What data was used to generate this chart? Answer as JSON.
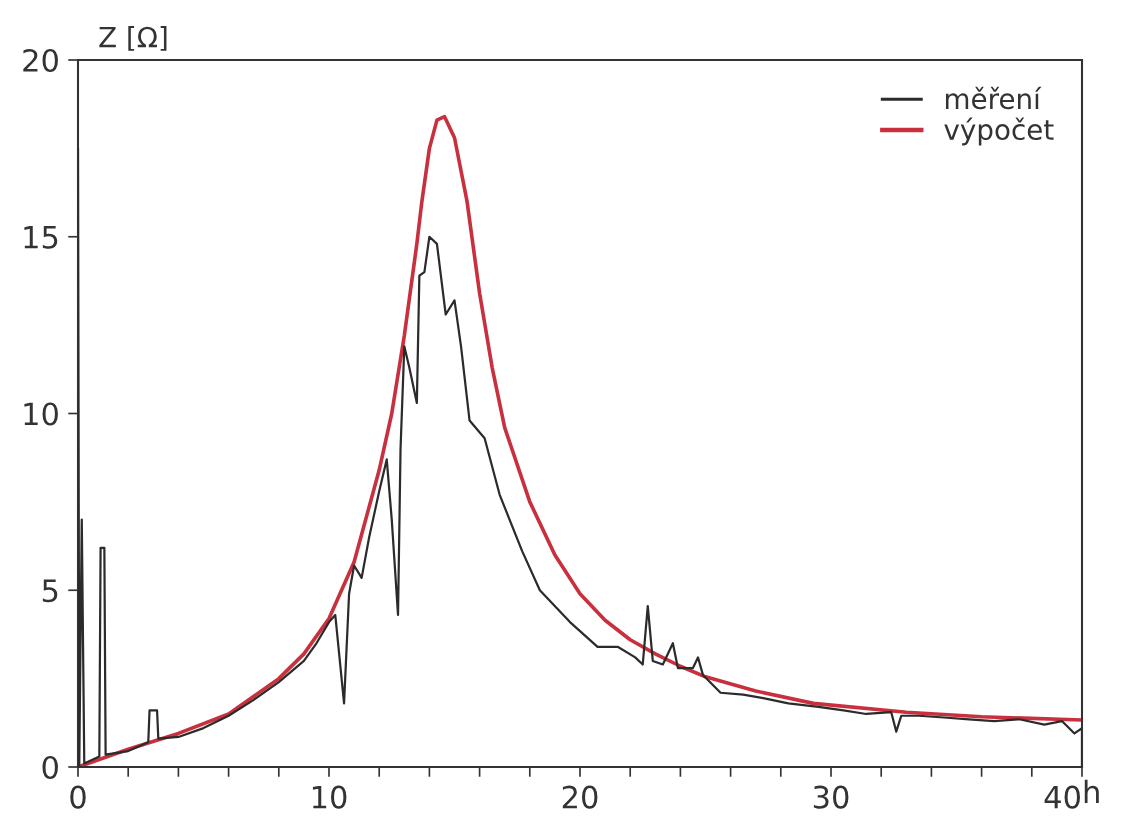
{
  "chart_data": {
    "type": "line",
    "ylabel": "Z [Ω]",
    "xlabel": "h",
    "xlim": [
      0,
      40
    ],
    "ylim": [
      0,
      20
    ],
    "xticks": [
      0,
      {
        "value": 2,
        "label": null
      },
      {
        "value": 4,
        "label": null
      },
      {
        "value": 6,
        "label": null
      },
      {
        "value": 8,
        "label": null
      },
      10,
      {
        "value": 12,
        "label": null
      },
      {
        "value": 14,
        "label": null
      },
      {
        "value": 16,
        "label": null
      },
      {
        "value": 18,
        "label": null
      },
      20,
      {
        "value": 22,
        "label": null
      },
      {
        "value": 24,
        "label": null
      },
      {
        "value": 26,
        "label": null
      },
      {
        "value": 28,
        "label": null
      },
      30,
      {
        "value": 32,
        "label": null
      },
      {
        "value": 34,
        "label": null
      },
      {
        "value": 36,
        "label": null
      },
      {
        "value": 38,
        "label": null
      },
      40
    ],
    "yticks": [
      0,
      5,
      10,
      15,
      20
    ],
    "grid": false,
    "legend": "top right",
    "line_style": "solid",
    "marker": "none",
    "series": [
      {
        "name": "měření",
        "color": "#2b2b2b",
        "x": [
          0,
          0,
          0.05,
          0.15,
          0.25,
          0.85,
          0.9,
          1.05,
          1.1,
          2,
          2.8,
          2.85,
          3.15,
          3.2,
          4,
          5,
          6,
          7,
          8,
          9,
          9.5,
          10,
          10.25,
          10.6,
          10.8,
          11,
          11.3,
          11.6,
          12,
          12.3,
          12.5,
          12.75,
          12.85,
          13,
          13.2,
          13.5,
          13.6,
          13.8,
          14,
          14.3,
          14.65,
          15,
          15.26,
          15.6,
          16.2,
          16.8,
          17.7,
          18.4,
          19.6,
          20.7,
          21.5,
          22.2,
          22.5,
          22.7,
          22.9,
          23.3,
          23.7,
          23.9,
          24.5,
          24.7,
          24.9,
          25.6,
          26.5,
          27.3,
          28.3,
          29.5,
          30.5,
          31.4,
          32.4,
          32.6,
          32.8,
          33.5,
          34.5,
          35.5,
          36.5,
          37.5,
          38.5,
          39.2,
          39.7,
          40,
          40
        ],
        "values": [
          0,
          17.5,
          0,
          7.0,
          0.1,
          0.3,
          6.2,
          6.2,
          0.35,
          0.45,
          0.7,
          1.6,
          1.6,
          0.8,
          0.85,
          1.1,
          1.45,
          1.9,
          2.4,
          3.0,
          3.5,
          4.1,
          4.3,
          1.8,
          4.9,
          5.7,
          5.35,
          6.5,
          7.8,
          8.7,
          7.0,
          4.3,
          9.0,
          11.9,
          11.3,
          10.3,
          13.9,
          14.0,
          15.0,
          14.8,
          12.8,
          13.2,
          11.9,
          9.8,
          9.3,
          7.7,
          6.1,
          5.0,
          4.1,
          3.4,
          3.4,
          3.1,
          2.9,
          4.55,
          3.0,
          2.9,
          3.5,
          2.8,
          2.8,
          3.1,
          2.6,
          2.1,
          2.05,
          1.95,
          1.8,
          1.7,
          1.6,
          1.5,
          1.55,
          1.0,
          1.45,
          1.45,
          1.4,
          1.35,
          1.3,
          1.35,
          1.2,
          1.3,
          0.95,
          1.1,
          0
        ]
      },
      {
        "name": "výpočet",
        "color": "#c8303e",
        "x": [
          0,
          2,
          4,
          6,
          8,
          9,
          10,
          11,
          12,
          12.5,
          13,
          13.5,
          13.7,
          14,
          14.3,
          14.6,
          15,
          15.5,
          16,
          16.5,
          17,
          18,
          19,
          20,
          21,
          22,
          23,
          24,
          25,
          27,
          29.3,
          33,
          36,
          40
        ],
        "values": [
          0,
          0.5,
          0.95,
          1.5,
          2.5,
          3.2,
          4.2,
          5.8,
          8.4,
          10.0,
          12.2,
          14.8,
          16.0,
          17.5,
          18.3,
          18.4,
          17.8,
          16.0,
          13.4,
          11.3,
          9.6,
          7.5,
          6.0,
          4.9,
          4.15,
          3.6,
          3.2,
          2.85,
          2.55,
          2.15,
          1.8,
          1.55,
          1.42,
          1.33
        ]
      }
    ]
  }
}
